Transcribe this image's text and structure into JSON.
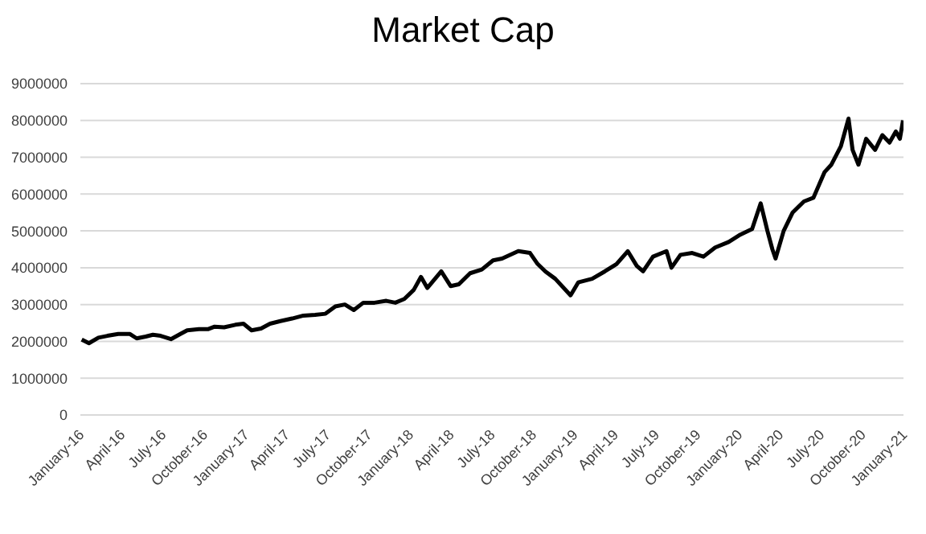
{
  "chart_data": {
    "type": "line",
    "title": "Market Cap",
    "x": [
      "2016-01-04",
      "2016-01-20",
      "2016-02-10",
      "2016-03-01",
      "2016-03-25",
      "2016-04-20",
      "2016-05-05",
      "2016-05-25",
      "2016-06-10",
      "2016-06-27",
      "2016-07-20",
      "2016-08-10",
      "2016-08-25",
      "2016-09-20",
      "2016-10-10",
      "2016-10-25",
      "2016-11-15",
      "2016-12-10",
      "2016-12-28",
      "2017-01-15",
      "2017-02-05",
      "2017-02-25",
      "2017-03-20",
      "2017-04-15",
      "2017-05-10",
      "2017-06-05",
      "2017-06-28",
      "2017-07-20",
      "2017-08-10",
      "2017-08-30",
      "2017-09-20",
      "2017-10-15",
      "2017-11-10",
      "2017-11-30",
      "2017-12-20",
      "2018-01-10",
      "2018-01-26",
      "2018-02-09",
      "2018-03-12",
      "2018-04-02",
      "2018-04-20",
      "2018-05-15",
      "2018-06-10",
      "2018-07-05",
      "2018-07-25",
      "2018-08-30",
      "2018-09-25",
      "2018-10-12",
      "2018-10-29",
      "2018-11-20",
      "2018-12-24",
      "2019-01-10",
      "2019-02-10",
      "2019-03-10",
      "2019-04-05",
      "2019-04-30",
      "2019-05-20",
      "2019-06-03",
      "2019-06-25",
      "2019-07-25",
      "2019-08-05",
      "2019-08-25",
      "2019-09-20",
      "2019-10-15",
      "2019-11-10",
      "2019-12-10",
      "2020-01-05",
      "2020-01-31",
      "2020-02-19",
      "2020-03-05",
      "2020-03-16",
      "2020-03-23",
      "2020-04-10",
      "2020-04-30",
      "2020-05-25",
      "2020-06-15",
      "2020-07-10",
      "2020-07-25",
      "2020-08-15",
      "2020-09-01",
      "2020-09-10",
      "2020-09-23",
      "2020-10-10",
      "2020-10-30",
      "2020-11-15",
      "2020-12-01",
      "2020-12-15",
      "2020-12-24",
      "2020-12-31"
    ],
    "values": [
      2050000,
      1950000,
      2100000,
      2150000,
      2200000,
      2200000,
      2080000,
      2130000,
      2180000,
      2150000,
      2060000,
      2200000,
      2300000,
      2330000,
      2330000,
      2400000,
      2380000,
      2450000,
      2480000,
      2300000,
      2350000,
      2480000,
      2550000,
      2620000,
      2700000,
      2720000,
      2750000,
      2950000,
      3000000,
      2850000,
      3050000,
      3050000,
      3100000,
      3050000,
      3150000,
      3400000,
      3750000,
      3450000,
      3900000,
      3500000,
      3550000,
      3850000,
      3950000,
      4200000,
      4250000,
      4450000,
      4400000,
      4100000,
      3900000,
      3700000,
      3250000,
      3600000,
      3700000,
      3900000,
      4100000,
      4450000,
      4050000,
      3900000,
      4300000,
      4450000,
      4000000,
      4350000,
      4400000,
      4300000,
      4550000,
      4700000,
      4900000,
      5050000,
      5750000,
      5000000,
      4500000,
      4250000,
      5000000,
      5500000,
      5800000,
      5900000,
      6600000,
      6800000,
      7300000,
      8050000,
      7200000,
      6800000,
      7500000,
      7200000,
      7600000,
      7400000,
      7700000,
      7500000,
      8000000
    ],
    "color": "#000000",
    "xlim": [
      "2016-01-01",
      "2021-01-01"
    ],
    "xticks": [
      {
        "value": "2016-01-01",
        "label": "January-16"
      },
      {
        "value": "2016-04-01",
        "label": "April-16"
      },
      {
        "value": "2016-07-01",
        "label": "July-16"
      },
      {
        "value": "2016-10-01",
        "label": "October-16"
      },
      {
        "value": "2017-01-01",
        "label": "January-17"
      },
      {
        "value": "2017-04-01",
        "label": "April-17"
      },
      {
        "value": "2017-07-01",
        "label": "July-17"
      },
      {
        "value": "2017-10-01",
        "label": "October-17"
      },
      {
        "value": "2018-01-01",
        "label": "January-18"
      },
      {
        "value": "2018-04-01",
        "label": "April-18"
      },
      {
        "value": "2018-07-01",
        "label": "July-18"
      },
      {
        "value": "2018-10-01",
        "label": "October-18"
      },
      {
        "value": "2019-01-01",
        "label": "January-19"
      },
      {
        "value": "2019-04-01",
        "label": "April-19"
      },
      {
        "value": "2019-07-01",
        "label": "July-19"
      },
      {
        "value": "2019-10-01",
        "label": "October-19"
      },
      {
        "value": "2020-01-01",
        "label": "January-20"
      },
      {
        "value": "2020-04-01",
        "label": "April-20"
      },
      {
        "value": "2020-07-01",
        "label": "July-20"
      },
      {
        "value": "2020-10-01",
        "label": "October-20"
      },
      {
        "value": "2021-01-01",
        "label": "January-21"
      }
    ],
    "ylim": [
      0,
      9000000
    ],
    "yticks": [
      0,
      1000000,
      2000000,
      3000000,
      4000000,
      5000000,
      6000000,
      7000000,
      8000000,
      9000000
    ],
    "grid": "y",
    "legend": false,
    "marker": "none",
    "line_style": "solid"
  }
}
